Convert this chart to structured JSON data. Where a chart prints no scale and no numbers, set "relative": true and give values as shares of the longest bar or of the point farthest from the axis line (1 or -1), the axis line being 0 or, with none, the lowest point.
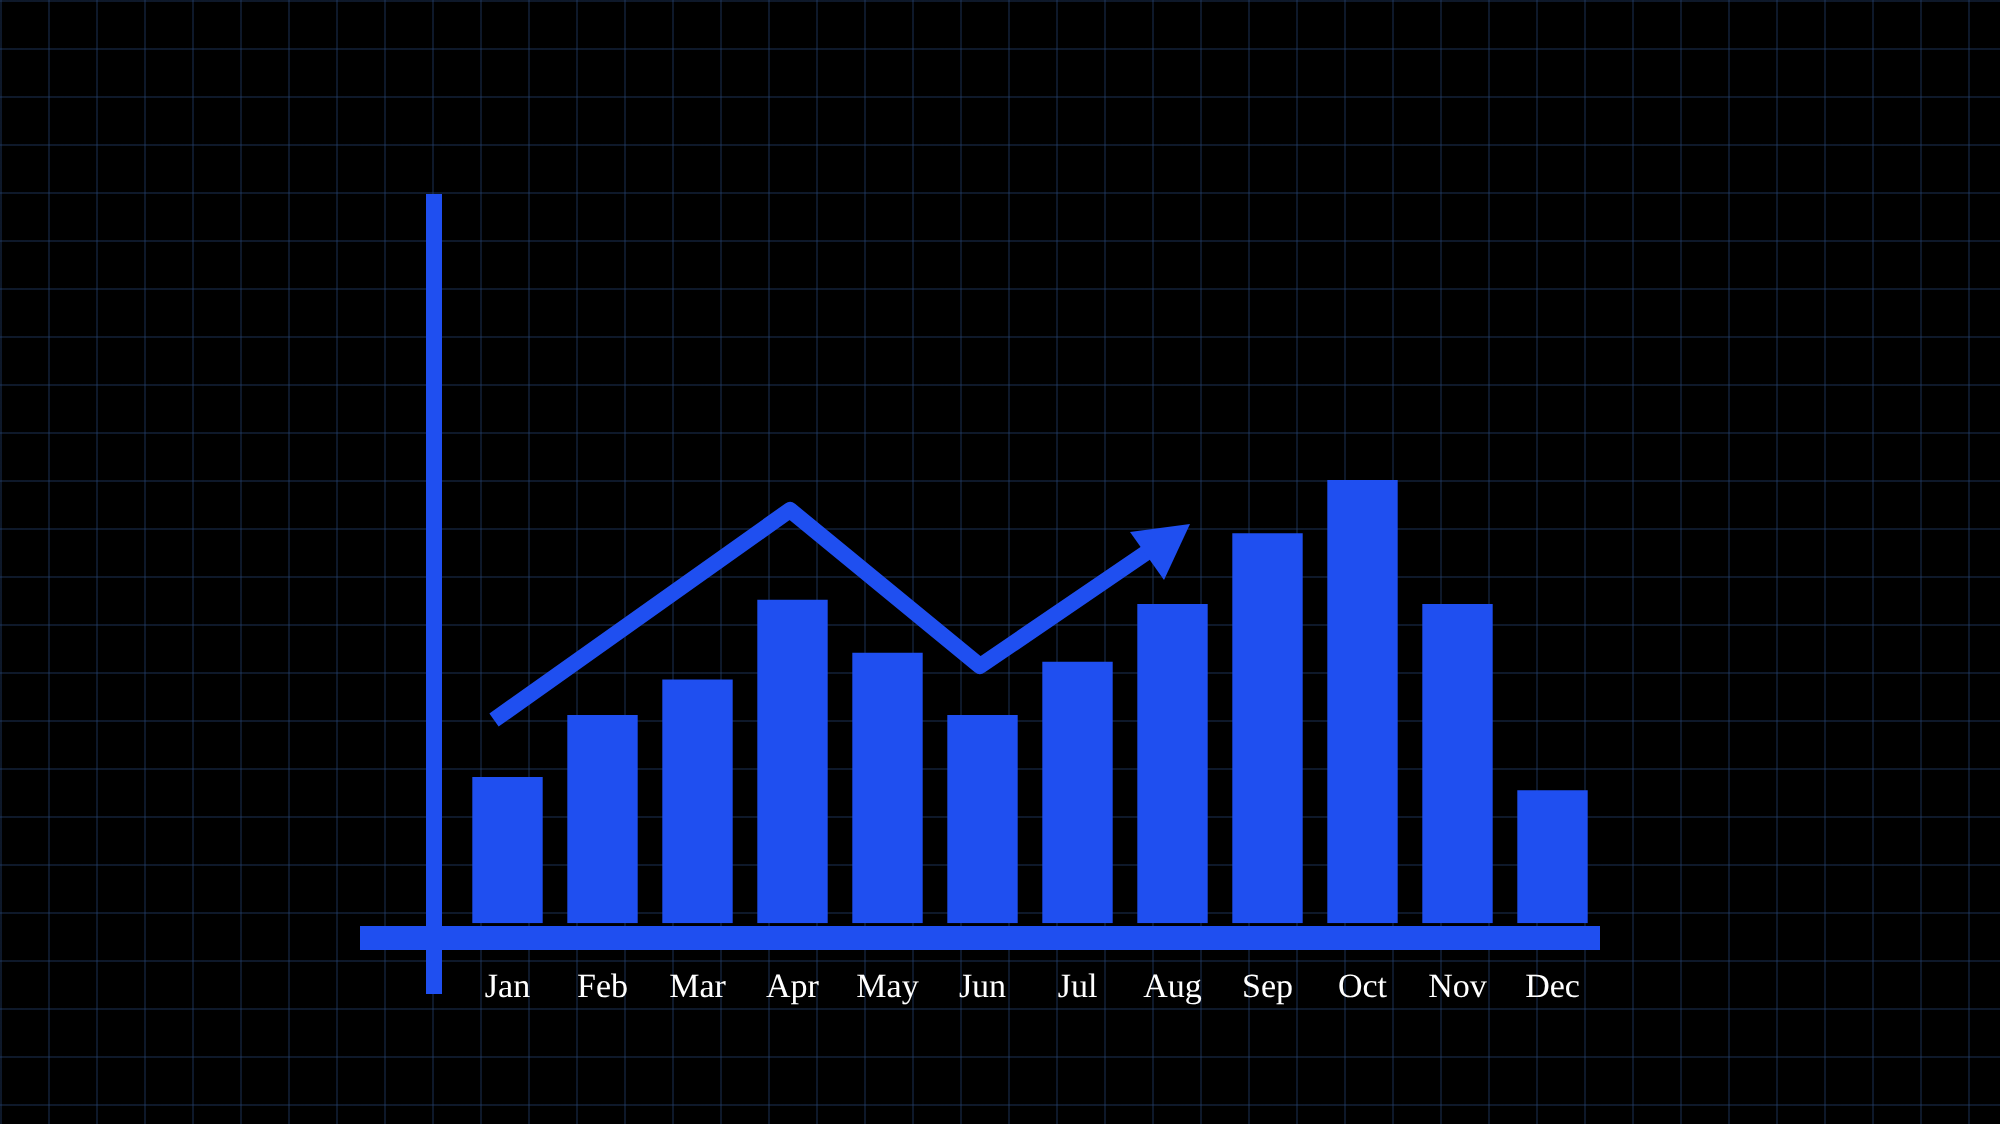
{
  "chart_data": {
    "type": "bar",
    "relative": true,
    "color": "#1f4ff0",
    "categories": [
      "Jan",
      "Feb",
      "Mar",
      "Apr",
      "May",
      "Jun",
      "Jul",
      "Aug",
      "Sep",
      "Oct",
      "Nov",
      "Dec"
    ],
    "values": [
      0.33,
      0.47,
      0.55,
      0.73,
      0.61,
      0.47,
      0.59,
      0.72,
      0.88,
      1,
      0.72,
      0.3
    ]
  }
}
